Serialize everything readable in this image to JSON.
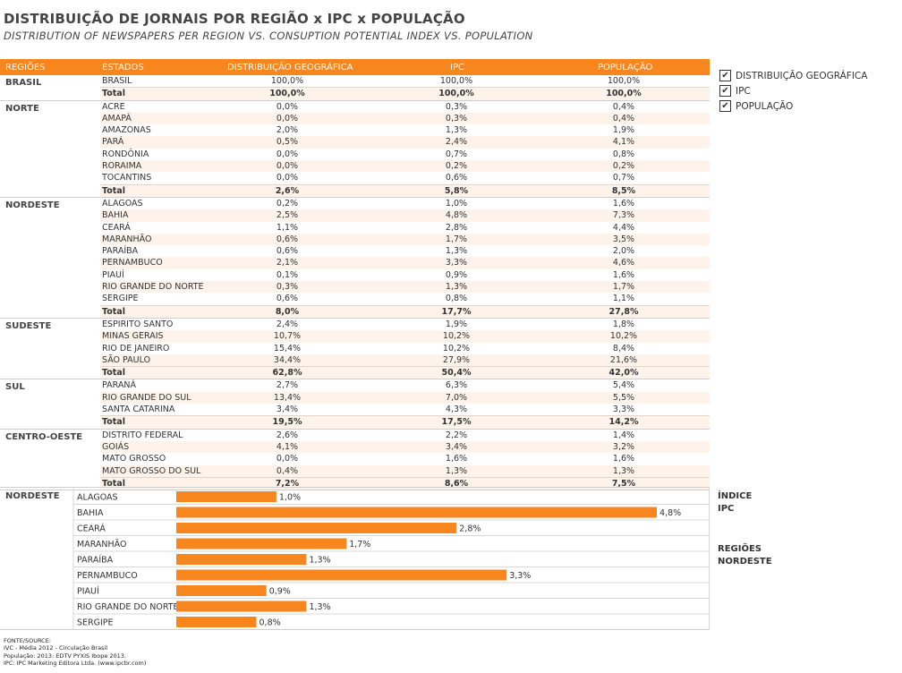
{
  "title": "DISTRIBUIÇÃO DE JORNAIS POR REGIÃO x IPC x POPULAÇÃO",
  "subtitle": "DISTRIBUTION OF NEWSPAPERS PER REGION VS. CONSUPTION POTENTIAL INDEX VS. POPULATION",
  "headers": {
    "region": "REGIÕES",
    "state": "ESTADOS",
    "dist": "DISTRIBUIÇÃO GEOGRÁFICA",
    "ipc": "IPC",
    "pop": "POPULAÇÃO"
  },
  "groups": [
    {
      "name": "BRASIL",
      "rows": [
        [
          "BRASIL",
          "100,0%",
          "100,0%",
          "100,0%"
        ],
        [
          "Total",
          "100,0%",
          "100,0%",
          "100,0%"
        ]
      ]
    },
    {
      "name": "NORTE",
      "rows": [
        [
          "ACRE",
          "0,0%",
          "0,3%",
          "0,4%"
        ],
        [
          "AMAPÁ",
          "0,0%",
          "0,3%",
          "0,4%"
        ],
        [
          "AMAZONAS",
          "2,0%",
          "1,3%",
          "1,9%"
        ],
        [
          "PARÁ",
          "0,5%",
          "2,4%",
          "4,1%"
        ],
        [
          "RONDÔNIA",
          "0,0%",
          "0,7%",
          "0,8%"
        ],
        [
          "RORAIMA",
          "0,0%",
          "0,2%",
          "0,2%"
        ],
        [
          "TOCANTINS",
          "0,0%",
          "0,6%",
          "0,7%"
        ],
        [
          "Total",
          "2,6%",
          "5,8%",
          "8,5%"
        ]
      ]
    },
    {
      "name": "NORDESTE",
      "rows": [
        [
          "ALAGOAS",
          "0,2%",
          "1,0%",
          "1,6%"
        ],
        [
          "BAHIA",
          "2,5%",
          "4,8%",
          "7,3%"
        ],
        [
          "CEARÁ",
          "1,1%",
          "2,8%",
          "4,4%"
        ],
        [
          "MARANHÃO",
          "0,6%",
          "1,7%",
          "3,5%"
        ],
        [
          "PARAÍBA",
          "0,6%",
          "1,3%",
          "2,0%"
        ],
        [
          "PERNAMBUCO",
          "2,1%",
          "3,3%",
          "4,6%"
        ],
        [
          "PIAUÍ",
          "0,1%",
          "0,9%",
          "1,6%"
        ],
        [
          "RIO GRANDE DO NORTE",
          "0,3%",
          "1,3%",
          "1,7%"
        ],
        [
          "SERGIPE",
          "0,6%",
          "0,8%",
          "1,1%"
        ],
        [
          "Total",
          "8,0%",
          "17,7%",
          "27,8%"
        ]
      ]
    },
    {
      "name": "SUDESTE",
      "rows": [
        [
          "ESPIRITO SANTO",
          "2,4%",
          "1,9%",
          "1,8%"
        ],
        [
          "MINAS GERAIS",
          "10,7%",
          "10,2%",
          "10,2%"
        ],
        [
          "RIO DE JANEIRO",
          "15,4%",
          "10,2%",
          "8,4%"
        ],
        [
          "SÃO PAULO",
          "34,4%",
          "27,9%",
          "21,6%"
        ],
        [
          "Total",
          "62,8%",
          "50,4%",
          "42,0%"
        ]
      ]
    },
    {
      "name": "SUL",
      "rows": [
        [
          "PARANÁ",
          "2,7%",
          "6,3%",
          "5,4%"
        ],
        [
          "RIO GRANDE DO SUL",
          "13,4%",
          "7,0%",
          "5,5%"
        ],
        [
          "SANTA CATARINA",
          "3,4%",
          "4,3%",
          "3,3%"
        ],
        [
          "Total",
          "19,5%",
          "17,5%",
          "14,2%"
        ]
      ]
    },
    {
      "name": "CENTRO-OESTE",
      "rows": [
        [
          "DISTRITO FEDERAL",
          "2,6%",
          "2,2%",
          "1,4%"
        ],
        [
          "GOIÁS",
          "4,1%",
          "3,4%",
          "3,2%"
        ],
        [
          "MATO GROSSO",
          "0,0%",
          "1,6%",
          "1,6%"
        ],
        [
          "MATO GROSSO DO SUL",
          "0,4%",
          "1,3%",
          "1,3%"
        ],
        [
          "Total",
          "7,2%",
          "8,6%",
          "7,5%"
        ]
      ]
    }
  ],
  "checkboxes": [
    "DISTRIBUIÇÃO GEOGRÁFICA",
    "IPC",
    "POPULAÇÃO"
  ],
  "checkmark": "✔",
  "side_panel": {
    "index_label": "ÍNDICE",
    "index_value": "IPC",
    "region_label": "REGIÕES",
    "region_value": "NORDESTE"
  },
  "chart_data": {
    "type": "bar",
    "orientation": "horizontal",
    "region": "NORDESTE",
    "categories": [
      "ALAGOAS",
      "BAHIA",
      "CEARÁ",
      "MARANHÃO",
      "PARAÍBA",
      "PERNAMBUCO",
      "PIAUÍ",
      "RIO GRANDE DO NORTE",
      "SERGIPE"
    ],
    "values": [
      1.0,
      4.8,
      2.8,
      1.7,
      1.3,
      3.3,
      0.9,
      1.3,
      0.8
    ],
    "value_labels": [
      "1,0%",
      "4,8%",
      "2,8%",
      "1,7%",
      "1,3%",
      "3,3%",
      "0,9%",
      "1,3%",
      "0,8%"
    ],
    "bar_color": "#f7861e"
  },
  "footer": [
    "FONTE/SOURCE:",
    "IVC - Média 2012 - Circulação Brasil",
    "População: 2013: EDTV  PYXIS Ibope 2013.",
    "IPC: IPC Marketing Editora Ltda. (www.ipcbr.com)"
  ],
  "colors": {
    "accent": "#f7861e",
    "shade": "#fdf3ea"
  }
}
